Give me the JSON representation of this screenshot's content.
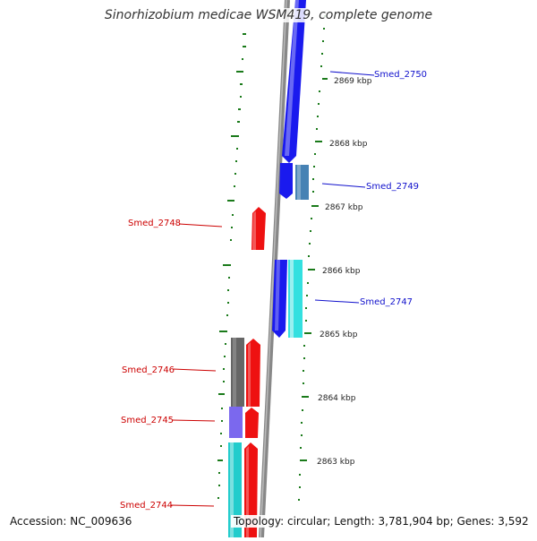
{
  "title": "Sinorhizobium medicae WSM419, complete genome",
  "footer": {
    "accession": "Accession: NC_009636",
    "topology": "Topology: circular; Length: 3,781,904 bp; Genes: 3,592"
  },
  "colors": {
    "backbone": "#888888",
    "tick": "#1a7a1a",
    "forward_label": "#1010cc",
    "reverse_label": "#cc0000",
    "blue": "#1a1aee",
    "steel": "#4682b4",
    "cyan": "#33e0e0",
    "red": "#ee1111",
    "gray": "#666666",
    "slate": "#7b68ee",
    "teal": "#22cccc"
  },
  "scale_labels": [
    "2869 kbp",
    "2868 kbp",
    "2867 kbp",
    "2866 kbp",
    "2865 kbp",
    "2864 kbp",
    "2863 kbp"
  ],
  "gene_labels": [
    {
      "name": "Smed_2750",
      "strand": "forward"
    },
    {
      "name": "Smed_2749",
      "strand": "forward"
    },
    {
      "name": "Smed_2748",
      "strand": "reverse"
    },
    {
      "name": "Smed_2747",
      "strand": "forward"
    },
    {
      "name": "Smed_2746",
      "strand": "reverse"
    },
    {
      "name": "Smed_2745",
      "strand": "reverse"
    },
    {
      "name": "Smed_2744",
      "strand": "reverse"
    }
  ]
}
